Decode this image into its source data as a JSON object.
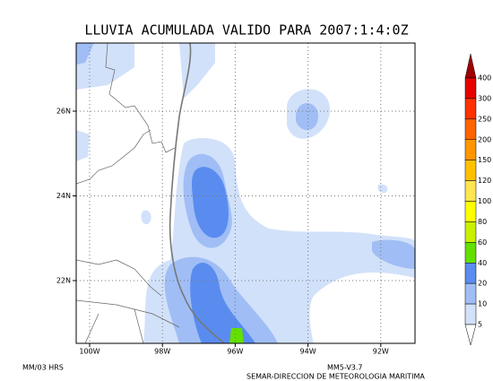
{
  "title": "LLUVIA ACUMULADA VALIDO PARA 2007:1:4:0Z",
  "map": {
    "lon_labels": [
      "100W",
      "98W",
      "96W",
      "94W",
      "92W"
    ],
    "lat_labels": [
      "26N",
      "24N",
      "22N"
    ]
  },
  "colorbar": {
    "levels": [
      "400",
      "300",
      "250",
      "200",
      "150",
      "120",
      "100",
      "80",
      "60",
      "40",
      "20",
      "10",
      "5"
    ],
    "colors": [
      "#a00000",
      "#e60000",
      "#ff3200",
      "#ff6400",
      "#ff9600",
      "#ffc000",
      "#ffe650",
      "#ffff00",
      "#c8f000",
      "#64e000",
      "#5a8cf0",
      "#a0bef5",
      "#d2e1fa"
    ]
  },
  "footer": {
    "left": "MM/03 HRS",
    "model": "MM5-V3.7",
    "institution": "SEMAR-DIRECCION DE METEOROLOGIA MARITIMA"
  }
}
